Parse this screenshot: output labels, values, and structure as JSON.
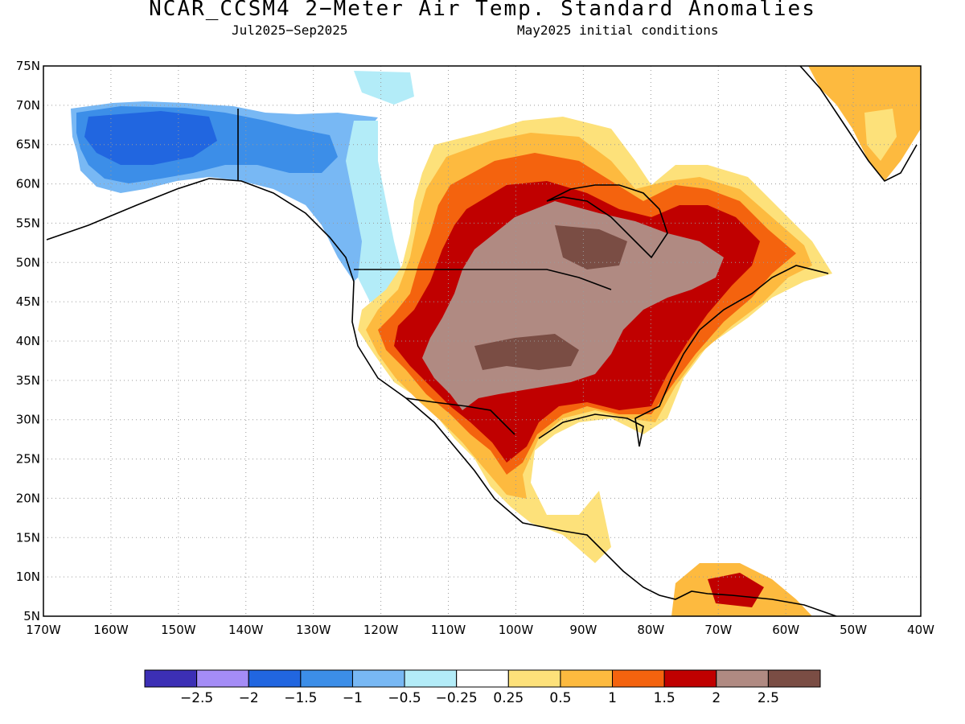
{
  "title": "NCAR_CCSM4 2−Meter Air Temp. Standard Anomalies",
  "subtitle_left": "Jul2025−Sep2025",
  "subtitle_right": "May2025 initial conditions",
  "lat_labels": [
    "75N",
    "70N",
    "65N",
    "60N",
    "55N",
    "50N",
    "45N",
    "40N",
    "35N",
    "30N",
    "25N",
    "20N",
    "15N",
    "10N",
    "5N"
  ],
  "lon_labels": [
    "170W",
    "160W",
    "150W",
    "140W",
    "130W",
    "120W",
    "110W",
    "100W",
    "90W",
    "80W",
    "70W",
    "60W",
    "50W",
    "40W"
  ],
  "colorbar": {
    "colors": [
      "#3c2fb5",
      "#a48cf6",
      "#2166e0",
      "#3c8ee8",
      "#78b8f4",
      "#b3ecf8",
      "#ffffff",
      "#fde17a",
      "#fdba3f",
      "#f4630e",
      "#c00000",
      "#b08a82",
      "#7a4d44"
    ],
    "labels": [
      "−2.5",
      "−2",
      "−1.5",
      "−1",
      "−0.5",
      "−0.25",
      "0.25",
      "0.5",
      "1",
      "1.5",
      "2",
      "2.5"
    ]
  }
}
